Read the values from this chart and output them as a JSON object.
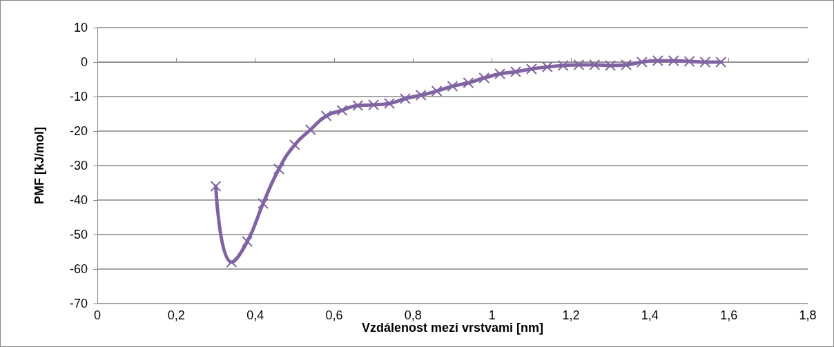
{
  "chart_data": {
    "type": "line",
    "xlabel": "Vzdálenost mezi vrstvami [nm]",
    "ylabel": "PMF [kJ/mol]",
    "x": [
      0.3,
      0.34,
      0.38,
      0.42,
      0.46,
      0.5,
      0.54,
      0.58,
      0.62,
      0.66,
      0.7,
      0.74,
      0.78,
      0.82,
      0.86,
      0.9,
      0.94,
      0.98,
      1.02,
      1.06,
      1.1,
      1.14,
      1.18,
      1.22,
      1.26,
      1.3,
      1.34,
      1.38,
      1.42,
      1.46,
      1.5,
      1.54,
      1.58
    ],
    "series": [
      {
        "color": "#8064a2",
        "values": [
          -36,
          -58,
          -52,
          -41,
          -31,
          -24,
          -19.6,
          -15.6,
          -14,
          -12.6,
          -12.4,
          -12,
          -10.6,
          -9.6,
          -8.4,
          -7,
          -6,
          -4.6,
          -3.4,
          -2.8,
          -2,
          -1.4,
          -1,
          -0.8,
          -0.8,
          -1,
          -0.8,
          0,
          0.4,
          0.4,
          0.2,
          0,
          0
        ]
      }
    ],
    "xlim": [
      0,
      1.8
    ],
    "xticks": [
      0,
      {
        "value": 0.2,
        "label": "0,2"
      },
      {
        "value": 0.4,
        "label": "0,4"
      },
      {
        "value": 0.6,
        "label": "0,6"
      },
      {
        "value": 0.8,
        "label": "0,8"
      },
      1,
      {
        "value": 1.2,
        "label": "1,2"
      },
      {
        "value": 1.4,
        "label": "1,4"
      },
      {
        "value": 1.6,
        "label": "1,6"
      },
      {
        "value": 1.8,
        "label": "1,8"
      }
    ],
    "ylim": [
      -70,
      10
    ],
    "yticks": [
      -70,
      -60,
      -50,
      -40,
      -30,
      -20,
      -10,
      0,
      10
    ],
    "grid": "y",
    "marker": "cross",
    "line_style": "solid"
  }
}
